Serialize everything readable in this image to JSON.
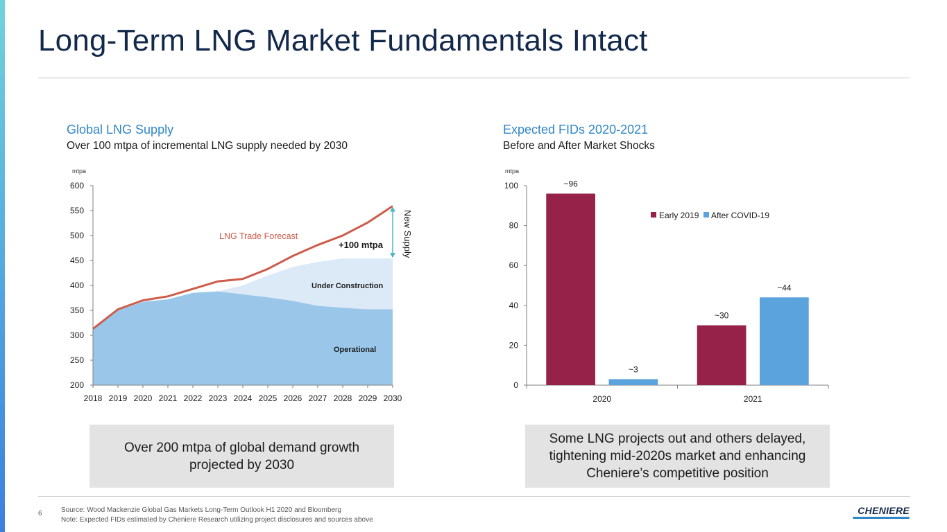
{
  "page": {
    "title": "Long-Term LNG Market Fundamentals Intact",
    "page_number": "6",
    "footnotes": [
      "Source: Wood Mackenzie Global Gas Markets Long-Term Outlook H1 2020 and Bloomberg",
      "Note: Expected FIDs estimated by Cheniere Research utilizing project disclosures and sources above"
    ],
    "logo_text": "CHENIERE"
  },
  "left_panel": {
    "title": "Global LNG Supply",
    "subtitle": "Over 100 mtpa of incremental LNG supply needed by 2030",
    "callout": "Over 200 mtpa of global demand growth projected by 2030"
  },
  "right_panel": {
    "title": "Expected FIDs 2020-2021",
    "subtitle": "Before and After Market Shocks",
    "callout": "Some LNG projects out and others delayed, tightening mid-2020s market and enhancing Cheniere’s competitive position"
  },
  "colors": {
    "operational": "#9ac7e9",
    "under_construction": "#dce9f7",
    "trade_forecast": "#cd5c4a",
    "new_supply_arrow": "#4fb3c8",
    "early_2019": "#962149",
    "after_covid": "#5ba3dd",
    "axis": "#7f7f7f",
    "panel_title": "#2f86c9"
  },
  "chart_data": [
    {
      "type": "area",
      "ylabel": "mtpa",
      "x": [
        2018,
        2019,
        2020,
        2021,
        2022,
        2023,
        2024,
        2025,
        2026,
        2027,
        2028,
        2029,
        2030
      ],
      "ylim": [
        200,
        600
      ],
      "yticks": [
        200,
        250,
        300,
        350,
        400,
        450,
        500,
        550,
        600
      ],
      "series": [
        {
          "name": "Operational",
          "kind": "area",
          "values": [
            313,
            350,
            367,
            372,
            385,
            388,
            382,
            376,
            369,
            359,
            355,
            352,
            352
          ]
        },
        {
          "name": "Under Construction",
          "kind": "area",
          "values": [
            313,
            350,
            367,
            372,
            385,
            388,
            400,
            420,
            437,
            447,
            454,
            454,
            454
          ]
        },
        {
          "name": "LNG Trade Forecast",
          "kind": "line",
          "values": [
            313,
            352,
            370,
            378,
            393,
            408,
            413,
            433,
            459,
            481,
            500,
            526,
            559
          ]
        }
      ],
      "annotations": [
        {
          "text": "+100 mtpa"
        },
        {
          "text": "New Supply",
          "from": 454,
          "to": 559
        }
      ],
      "grid": false
    },
    {
      "type": "bar",
      "ylabel": "mtpa",
      "categories": [
        "2020",
        "2021"
      ],
      "ylim": [
        0,
        100
      ],
      "yticks": [
        0,
        20,
        40,
        60,
        80,
        100
      ],
      "series": [
        {
          "name": "Early 2019",
          "values": [
            96,
            30
          ],
          "labels": [
            "~96",
            "~30"
          ]
        },
        {
          "name": "After COVID-19",
          "values": [
            3,
            44
          ],
          "labels": [
            "~3",
            "~44"
          ]
        }
      ],
      "legend": "top-right",
      "grid": false
    }
  ]
}
